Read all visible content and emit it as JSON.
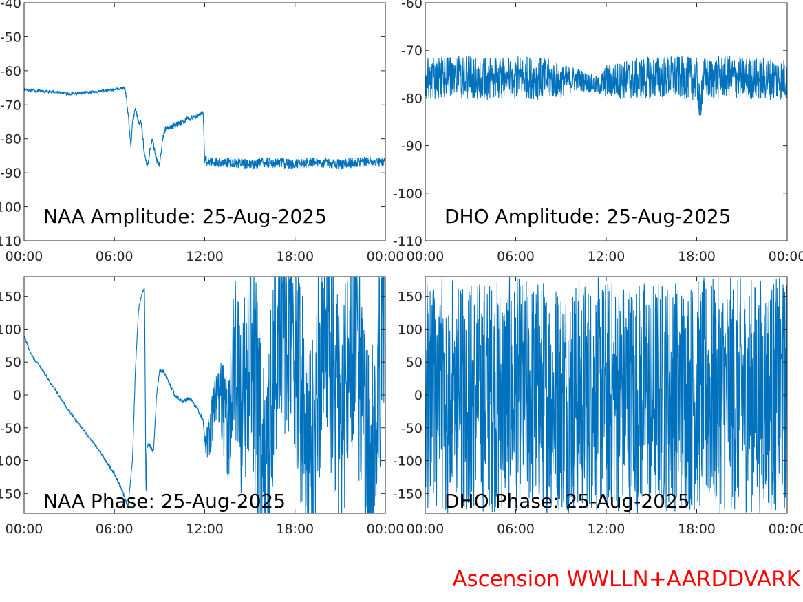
{
  "footer": {
    "text": "Ascension WWLLN+AARDDVARK",
    "color": "#ff0000"
  },
  "colors": {
    "series": "#0072bd",
    "axis": "#262626"
  },
  "chart_data": [
    {
      "type": "line",
      "title": "NAA Amplitude: 25-Aug-2025",
      "xlabel": "",
      "ylabel": "",
      "xlim": [
        0,
        24
      ],
      "x_ticks": [
        0,
        6,
        12,
        18,
        24
      ],
      "x_tick_labels": [
        "00:00",
        "06:00",
        "12:00",
        "18:00",
        "00:00"
      ],
      "ylim": [
        -110,
        -40
      ],
      "y_ticks": [
        -110,
        -100,
        -90,
        -80,
        -70,
        -60,
        -50,
        -40
      ],
      "y_tick_labels": [
        "-110",
        "-100",
        "-90",
        "-80",
        "-70",
        "-60",
        "-50",
        "-40"
      ],
      "series": [
        {
          "x": [
            0,
            1,
            2,
            3,
            4,
            5,
            6,
            6.7,
            6.8,
            7.0,
            7.1,
            7.2,
            7.4,
            7.6,
            7.8,
            8.0,
            8.2,
            8.5,
            8.8,
            9.0,
            9.2,
            9.4,
            9.6,
            10,
            11,
            11.9,
            12.0,
            12.1,
            13,
            14,
            15,
            16,
            17,
            18,
            19,
            20,
            21,
            22,
            23,
            24
          ],
          "y": [
            -65.5,
            -66,
            -66.2,
            -66.8,
            -66.5,
            -66,
            -65.5,
            -65,
            -68,
            -77,
            -82,
            -75,
            -71,
            -75,
            -75.5,
            -85,
            -88,
            -80,
            -86,
            -88,
            -80,
            -77,
            -77,
            -76,
            -74,
            -72.5,
            -86,
            -86.5,
            -87,
            -87,
            -87.5,
            -87,
            -87,
            -87.5,
            -87,
            -87,
            -87.5,
            -87,
            -86.5,
            -87
          ],
          "noise": [
            0.4,
            0.4,
            0.4,
            0.4,
            0.4,
            0.4,
            0.4,
            0.5,
            0.8,
            0.8,
            0.8,
            0.8,
            0.8,
            0.8,
            0.8,
            0.8,
            0.8,
            0.8,
            0.8,
            0.8,
            0.8,
            0.8,
            0.8,
            0.8,
            0.8,
            0.5,
            1.5,
            1.5,
            1.5,
            1.5,
            1.5,
            1.5,
            1.5,
            1.5,
            1.5,
            1.5,
            1.5,
            1.5,
            1.5,
            1.5
          ]
        }
      ]
    },
    {
      "type": "line",
      "title": "DHO Amplitude: 25-Aug-2025",
      "xlabel": "",
      "ylabel": "",
      "xlim": [
        0,
        24
      ],
      "x_ticks": [
        0,
        6,
        12,
        18,
        24
      ],
      "x_tick_labels": [
        "00:00",
        "06:00",
        "12:00",
        "18:00",
        "00:00"
      ],
      "ylim": [
        -110,
        -60
      ],
      "y_ticks": [
        -110,
        -100,
        -90,
        -80,
        -70,
        -60
      ],
      "y_tick_labels": [
        "-110",
        "-100",
        "-90",
        "-80",
        "-70",
        "-60"
      ],
      "series": [
        {
          "x": [
            0,
            2,
            4,
            6,
            8,
            9,
            10,
            11,
            11.5,
            12,
            14,
            16,
            18,
            18.2,
            18.4,
            20,
            22,
            24
          ],
          "y": [
            -76,
            -75.5,
            -76,
            -75.5,
            -76,
            -76.5,
            -76,
            -77,
            -77.5,
            -76.5,
            -76,
            -75.5,
            -76,
            -82,
            -76,
            -75.5,
            -76,
            -76
          ],
          "noise": [
            4.5,
            4.5,
            4.5,
            4.5,
            4.5,
            3.5,
            2.5,
            2,
            2,
            3.5,
            4.5,
            4.5,
            4.5,
            4.5,
            4.5,
            4.5,
            4.5,
            4.5
          ]
        }
      ]
    },
    {
      "type": "line",
      "title": "NAA Phase: 25-Aug-2025",
      "xlabel": "",
      "ylabel": "",
      "xlim": [
        0,
        24
      ],
      "x_ticks": [
        0,
        6,
        12,
        18,
        24
      ],
      "x_tick_labels": [
        "00:00",
        "06:00",
        "12:00",
        "18:00",
        "00:00"
      ],
      "ylim": [
        -180,
        180
      ],
      "y_ticks": [
        -150,
        -100,
        -50,
        0,
        50,
        100,
        150
      ],
      "y_tick_labels": [
        "-150",
        "-100",
        "-50",
        "0",
        "50",
        "100",
        "150"
      ],
      "series": [
        {
          "x": [
            0,
            0.5,
            1,
            2,
            3,
            4,
            5,
            6,
            6.5,
            6.9,
            7.2,
            7.4,
            7.6,
            7.8,
            8.0,
            8.1,
            8.15,
            8.3,
            8.6,
            8.8,
            9,
            9.3,
            9.6,
            10,
            10.5,
            11,
            11.5,
            11.9,
            12.1,
            12.5,
            13,
            13.5,
            14,
            14.5,
            15,
            16,
            17,
            18,
            19,
            20,
            21,
            22,
            23,
            24
          ],
          "y": [
            90,
            60,
            45,
            10,
            -25,
            -55,
            -85,
            -120,
            -145,
            -170,
            -100,
            40,
            130,
            150,
            165,
            -160,
            -80,
            -75,
            -85,
            0,
            37,
            35,
            20,
            0,
            -10,
            -5,
            -20,
            -40,
            -80,
            -40,
            20,
            -60,
            60,
            -30,
            100,
            -150,
            150,
            60,
            -120,
            140,
            -60,
            100,
            -140,
            170
          ],
          "noise": [
            2,
            2,
            2,
            2,
            2,
            2,
            2,
            3,
            3,
            3,
            3,
            3,
            3,
            3,
            3,
            3,
            3,
            3,
            3,
            3,
            3,
            3,
            3,
            3,
            3,
            3,
            3,
            3,
            25,
            40,
            60,
            80,
            120,
            140,
            170,
            180,
            180,
            180,
            180,
            180,
            180,
            180,
            180,
            180
          ]
        }
      ]
    },
    {
      "type": "line",
      "title": "DHO Phase: 25-Aug-2025",
      "xlabel": "",
      "ylabel": "",
      "xlim": [
        0,
        24
      ],
      "x_ticks": [
        0,
        6,
        12,
        18,
        24
      ],
      "x_tick_labels": [
        "00:00",
        "06:00",
        "12:00",
        "18:00",
        "00:00"
      ],
      "ylim": [
        -180,
        180
      ],
      "y_ticks": [
        -150,
        -100,
        -50,
        0,
        50,
        100,
        150
      ],
      "y_tick_labels": [
        "-150",
        "-100",
        "-50",
        "0",
        "50",
        "100",
        "150"
      ],
      "series": [
        {
          "x": [
            0,
            4,
            8,
            12,
            16,
            20,
            24
          ],
          "y": [
            0,
            0,
            0,
            0,
            0,
            0,
            0
          ],
          "noise": [
            180,
            180,
            180,
            180,
            180,
            180,
            180
          ]
        }
      ]
    }
  ]
}
